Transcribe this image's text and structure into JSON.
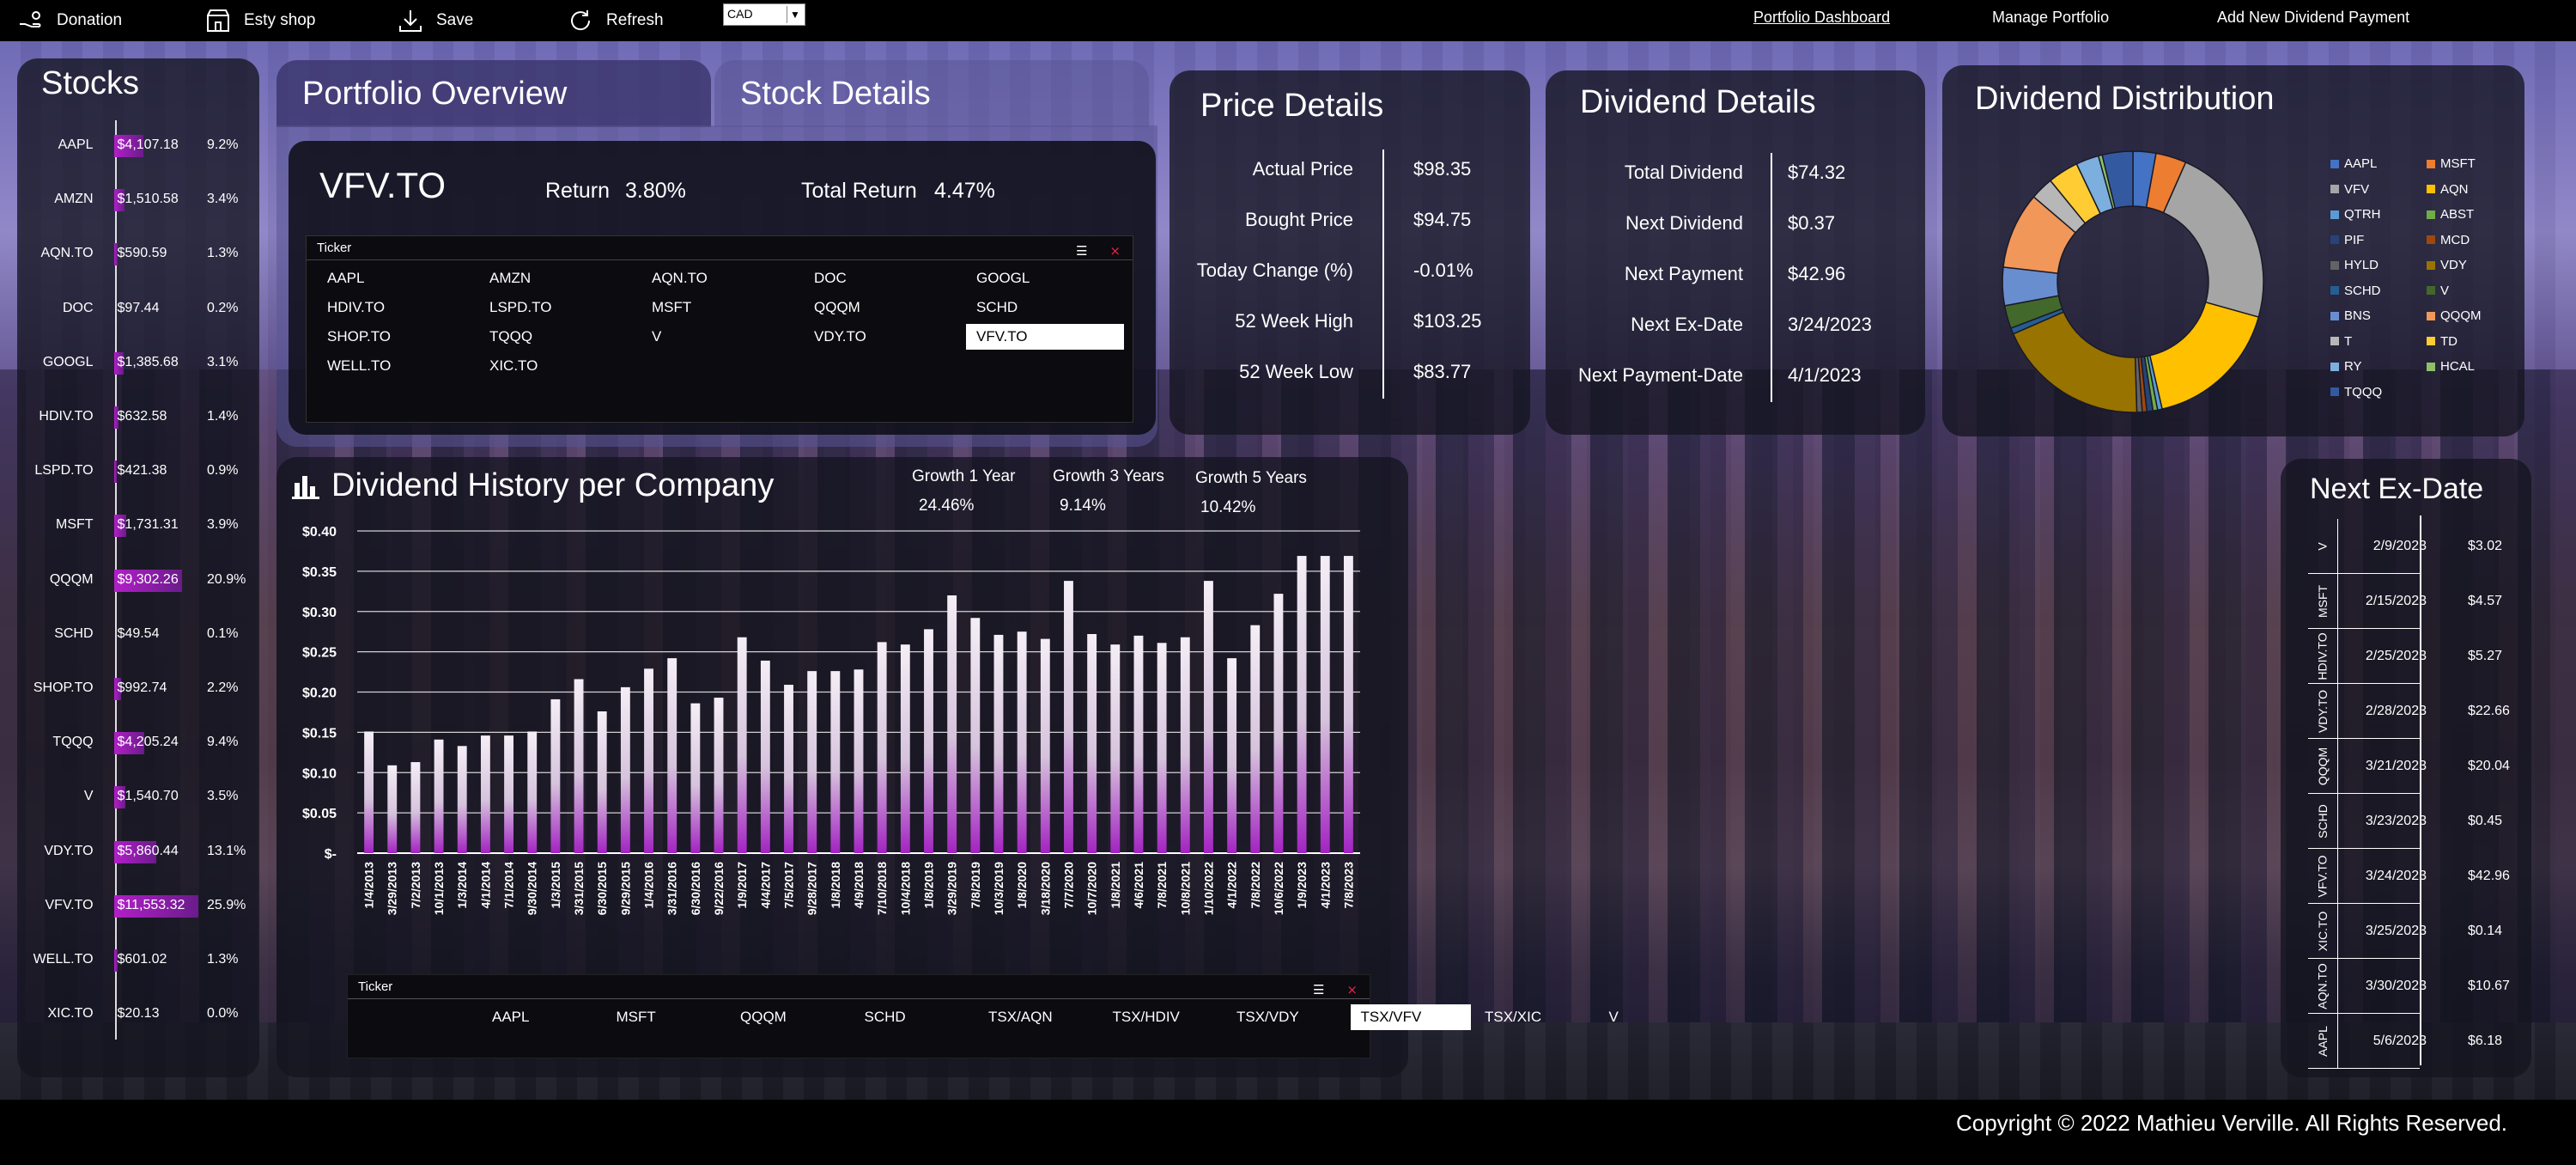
{
  "toolbar": {
    "donation": "Donation",
    "etsy": "Esty shop",
    "save": "Save",
    "refresh": "Refresh",
    "currency": "CAD"
  },
  "nav": {
    "dashboard": "Portfolio Dashboard",
    "manage": "Manage Portfolio",
    "add_dividend": "Add New Dividend Payment"
  },
  "stocks": {
    "title": "Stocks",
    "rows": [
      {
        "ticker": "AAPL",
        "value": "$4,107.18",
        "pct": "9.2%",
        "share": 0.092
      },
      {
        "ticker": "AMZN",
        "value": "$1,510.58",
        "pct": "3.4%",
        "share": 0.034
      },
      {
        "ticker": "AQN.TO",
        "value": "$590.59",
        "pct": "1.3%",
        "share": 0.013
      },
      {
        "ticker": "DOC",
        "value": "$97.44",
        "pct": "0.2%",
        "share": 0.002
      },
      {
        "ticker": "GOOGL",
        "value": "$1,385.68",
        "pct": "3.1%",
        "share": 0.031
      },
      {
        "ticker": "HDIV.TO",
        "value": "$632.58",
        "pct": "1.4%",
        "share": 0.014
      },
      {
        "ticker": "LSPD.TO",
        "value": "$421.38",
        "pct": "0.9%",
        "share": 0.009
      },
      {
        "ticker": "MSFT",
        "value": "$1,731.31",
        "pct": "3.9%",
        "share": 0.039
      },
      {
        "ticker": "QQQM",
        "value": "$9,302.26",
        "pct": "20.9%",
        "share": 0.209
      },
      {
        "ticker": "SCHD",
        "value": "$49.54",
        "pct": "0.1%",
        "share": 0.001
      },
      {
        "ticker": "SHOP.TO",
        "value": "$992.74",
        "pct": "2.2%",
        "share": 0.022
      },
      {
        "ticker": "TQQQ",
        "value": "$4,205.24",
        "pct": "9.4%",
        "share": 0.094
      },
      {
        "ticker": "V",
        "value": "$1,540.70",
        "pct": "3.5%",
        "share": 0.035
      },
      {
        "ticker": "VDY.TO",
        "value": "$5,860.44",
        "pct": "13.1%",
        "share": 0.131
      },
      {
        "ticker": "VFV.TO",
        "value": "$11,553.32",
        "pct": "25.9%",
        "share": 0.259
      },
      {
        "ticker": "WELL.TO",
        "value": "$601.02",
        "pct": "1.3%",
        "share": 0.013
      },
      {
        "ticker": "XIC.TO",
        "value": "$20.13",
        "pct": "0.0%",
        "share": 0.0
      }
    ]
  },
  "tabs": {
    "overview": "Portfolio Overview",
    "details": "Stock Details"
  },
  "overview": {
    "symbol": "VFV.TO",
    "return_label": "Return",
    "return_value": "3.80%",
    "total_return_label": "Total Return",
    "total_return_value": "4.47%",
    "ticker_header": "Ticker",
    "tickers": [
      "AAPL",
      "AMZN",
      "AQN.TO",
      "DOC",
      "GOOGL",
      "HDIV.TO",
      "LSPD.TO",
      "MSFT",
      "QQQM",
      "SCHD",
      "SHOP.TO",
      "TQQQ",
      "V",
      "VDY.TO",
      "VFV.TO",
      "WELL.TO",
      "XIC.TO"
    ],
    "selected": "VFV.TO"
  },
  "price": {
    "title": "Price Details",
    "rows": [
      {
        "label": "Actual Price",
        "value": "$98.35"
      },
      {
        "label": "Bought Price",
        "value": "$94.75"
      },
      {
        "label": "Today Change (%)",
        "value": "-0.01%"
      },
      {
        "label": "52 Week High",
        "value": "$103.25"
      },
      {
        "label": "52 Week Low",
        "value": "$83.77"
      }
    ]
  },
  "dividend": {
    "title": "Dividend Details",
    "rows": [
      {
        "label": "Total Dividend",
        "value": "$74.32"
      },
      {
        "label": "Next Dividend",
        "value": "$0.37"
      },
      {
        "label": "Next Payment",
        "value": "$42.96"
      },
      {
        "label": "Next Ex-Date",
        "value": "3/24/2023"
      },
      {
        "label": "Next Payment-Date",
        "value": "4/1/2023"
      }
    ]
  },
  "distribution": {
    "title": "Dividend Distribution",
    "legend": [
      {
        "name": "AAPL",
        "color": "#4472c4"
      },
      {
        "name": "MSFT",
        "color": "#ed7d31"
      },
      {
        "name": "VFV",
        "color": "#a5a5a5"
      },
      {
        "name": "AQN",
        "color": "#ffc000"
      },
      {
        "name": "QTRH",
        "color": "#5b9bd5"
      },
      {
        "name": "ABST",
        "color": "#70ad47"
      },
      {
        "name": "PIF",
        "color": "#264478"
      },
      {
        "name": "MCD",
        "color": "#9e480e"
      },
      {
        "name": "HYLD",
        "color": "#636363"
      },
      {
        "name": "VDY",
        "color": "#997300"
      },
      {
        "name": "SCHD",
        "color": "#255e91"
      },
      {
        "name": "V",
        "color": "#43682b"
      },
      {
        "name": "BNS",
        "color": "#698ed0"
      },
      {
        "name": "QQQM",
        "color": "#f1975a"
      },
      {
        "name": "T",
        "color": "#b7b7b7"
      },
      {
        "name": "TD",
        "color": "#ffcd33"
      },
      {
        "name": "RY",
        "color": "#7cafdd"
      },
      {
        "name": "HCAL",
        "color": "#8cc168"
      },
      {
        "name": "TQQQ",
        "color": "#335aa1"
      }
    ]
  },
  "chart_data": {
    "type": "bar",
    "title": "Dividend History per Company",
    "categories": [
      "1/4/2013",
      "3/29/2013",
      "7/2/2013",
      "10/1/2013",
      "1/3/2014",
      "4/1/2014",
      "7/1/2014",
      "9/30/2014",
      "1/3/2015",
      "3/31/2015",
      "6/30/2015",
      "9/29/2015",
      "1/4/2016",
      "3/31/2016",
      "6/30/2016",
      "9/22/2016",
      "1/9/2017",
      "4/4/2017",
      "7/5/2017",
      "9/28/2017",
      "1/8/2018",
      "4/9/2018",
      "7/10/2018",
      "10/4/2018",
      "1/8/2019",
      "3/29/2019",
      "7/8/2019",
      "10/3/2019",
      "1/8/2020",
      "3/18/2020",
      "7/7/2020",
      "10/7/2020",
      "1/8/2021",
      "4/6/2021",
      "7/8/2021",
      "10/8/2021",
      "1/10/2022",
      "4/1/2022",
      "7/8/2022",
      "10/6/2022",
      "1/9/2023",
      "4/1/2023",
      "7/8/2023"
    ],
    "values": [
      0.151,
      0.109,
      0.113,
      0.141,
      0.133,
      0.146,
      0.146,
      0.151,
      0.191,
      0.216,
      0.176,
      0.206,
      0.229,
      0.242,
      0.186,
      0.193,
      0.268,
      0.239,
      0.209,
      0.226,
      0.226,
      0.228,
      0.262,
      0.259,
      0.278,
      0.32,
      0.292,
      0.271,
      0.275,
      0.266,
      0.338,
      0.272,
      0.259,
      0.27,
      0.261,
      0.268,
      0.338,
      0.242,
      0.283,
      0.322,
      0.369,
      0.369,
      0.369
    ],
    "ylim": [
      0,
      0.4
    ],
    "yticks": [
      "$-",
      "$0.05",
      "$0.10",
      "$0.15",
      "$0.20",
      "$0.25",
      "$0.30",
      "$0.35",
      "$0.40"
    ],
    "growth": [
      {
        "label": "Growth 1 Year",
        "value": "24.46%"
      },
      {
        "label": "Growth 3 Years",
        "value": "9.14%"
      },
      {
        "label": "Growth 5 Years",
        "value": "10.42%"
      }
    ]
  },
  "history_filter": {
    "header": "Ticker",
    "items": [
      "AAPL",
      "MSFT",
      "QQQM",
      "SCHD",
      "TSX/AQN",
      "TSX/HDIV",
      "TSX/VDY",
      "TSX/VFV",
      "TSX/XIC",
      "V"
    ],
    "selected": "TSX/VFV"
  },
  "exdate": {
    "title": "Next Ex-Date",
    "rows": [
      {
        "ticker": "V",
        "date": "2/9/2023",
        "amount": "$3.02"
      },
      {
        "ticker": "MSFT",
        "date": "2/15/2023",
        "amount": "$4.57"
      },
      {
        "ticker": "HDIV.TO",
        "date": "2/25/2023",
        "amount": "$5.27"
      },
      {
        "ticker": "VDY.TO",
        "date": "2/28/2023",
        "amount": "$22.66"
      },
      {
        "ticker": "QQQM",
        "date": "3/21/2023",
        "amount": "$20.04"
      },
      {
        "ticker": "SCHD",
        "date": "3/23/2023",
        "amount": "$0.45"
      },
      {
        "ticker": "VFV.TO",
        "date": "3/24/2023",
        "amount": "$42.96"
      },
      {
        "ticker": "XIC.TO",
        "date": "3/25/2023",
        "amount": "$0.14"
      },
      {
        "ticker": "AQN.TO",
        "date": "3/30/2023",
        "amount": "$10.67"
      },
      {
        "ticker": "AAPL",
        "date": "5/6/2023",
        "amount": "$6.18"
      }
    ]
  },
  "footer": {
    "copyright": "Copyright © 2022 Mathieu Verville. All Rights Reserved."
  }
}
